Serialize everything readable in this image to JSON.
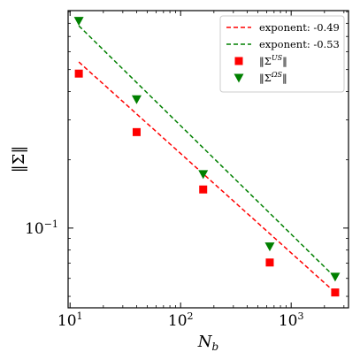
{
  "chart_data": {
    "type": "scatter",
    "xlabel": "N_b",
    "ylabel": "‖Σ‖",
    "xscale": "log",
    "yscale": "log",
    "xlim": [
      9.6,
      3300
    ],
    "ylim": [
      0.0445,
      0.91
    ],
    "x_ticks": [
      {
        "value": 10,
        "base": "10",
        "exp": "1"
      },
      {
        "value": 100,
        "base": "10",
        "exp": "2"
      },
      {
        "value": 1000,
        "base": "10",
        "exp": "3"
      }
    ],
    "y_ticks": [
      {
        "value": 0.1,
        "label": "10",
        "exp": "−1"
      }
    ],
    "grid": false,
    "legend_position": "top-right",
    "series": [
      {
        "name": "‖Σ^{US}‖",
        "name_base": "‖Σ",
        "name_sup": "US",
        "name_tail": "‖",
        "kind": "points",
        "marker": "square",
        "color": "#ff0000",
        "x": [
          12,
          40,
          160,
          640,
          2500
        ],
        "y": [
          0.48,
          0.265,
          0.148,
          0.0705,
          0.052
        ]
      },
      {
        "name": "‖Σ^{ΩS}‖",
        "name_base": "‖Σ",
        "name_sup": "ΩS",
        "name_tail": "‖",
        "kind": "points",
        "marker": "triangle-down",
        "color": "#008000",
        "x": [
          12,
          40,
          160,
          640,
          2500
        ],
        "y": [
          0.82,
          0.37,
          0.173,
          0.083,
          0.061
        ]
      },
      {
        "name": "exponent: -0.49",
        "kind": "fit",
        "color": "#ff0000",
        "dash": "dashed",
        "x": [
          12,
          2500
        ],
        "y": [
          0.54,
          0.052
        ]
      },
      {
        "name": "exponent: -0.53",
        "kind": "fit",
        "color": "#008000",
        "dash": "dashed",
        "x": [
          12,
          2500
        ],
        "y": [
          0.78,
          0.0606
        ]
      }
    ],
    "legend_order": [
      2,
      3,
      0,
      1
    ]
  }
}
